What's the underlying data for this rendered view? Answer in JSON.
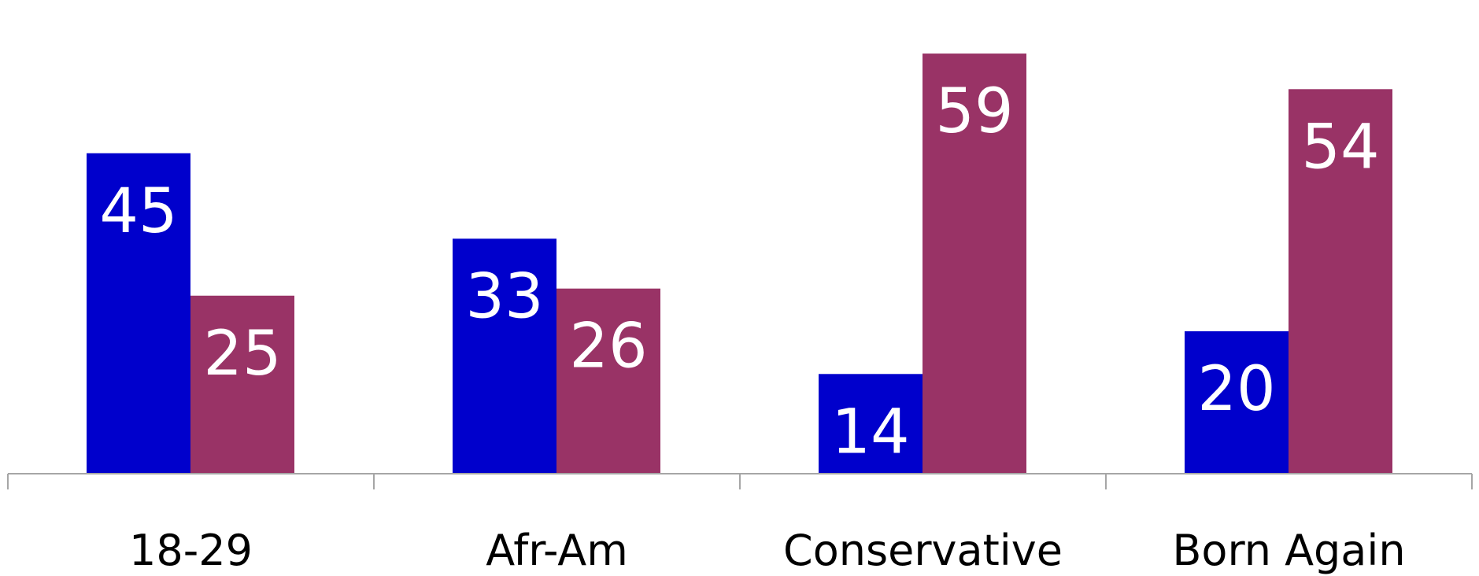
{
  "chart_data": {
    "type": "bar",
    "categories": [
      "18-29",
      "Afr-Am",
      "Conservative",
      "Born Again"
    ],
    "series": [
      {
        "values": [
          45,
          33,
          14,
          20
        ],
        "color": "#0000cc"
      },
      {
        "values": [
          25,
          26,
          59,
          54
        ],
        "color": "#993366"
      }
    ],
    "ylim": [
      0,
      60
    ],
    "grid": false,
    "legend": "none",
    "title": "",
    "xlabel": "",
    "ylabel": ""
  }
}
